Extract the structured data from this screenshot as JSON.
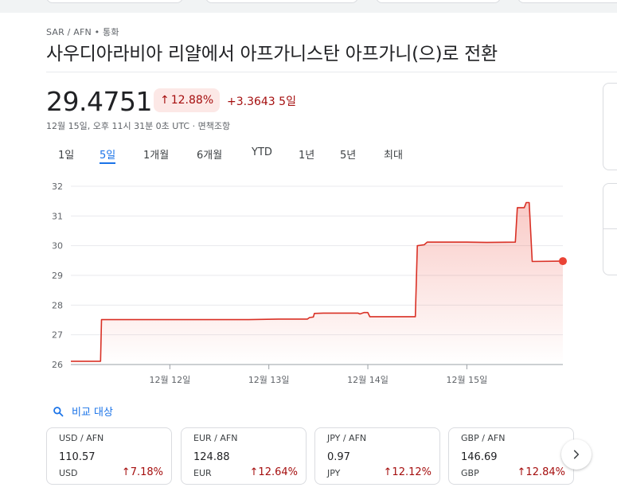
{
  "breadcrumb": "SAR / AFN • 통화",
  "title": "사우디아라비아 리얄에서 아프가니스탄 아프가니(으)로 전환",
  "price": {
    "value": "29.4751",
    "percent_change": "12.88%",
    "change": "+3.3643 5일",
    "meta": "12월 15일, 오후 11시 31분 0초 UTC · 면책조항"
  },
  "tabs": [
    "1일",
    "5일",
    "1개월",
    "6개월",
    "YTD",
    "1년",
    "5년",
    "최대"
  ],
  "active_tab": "5일",
  "compare_label": "비교 대상",
  "chart_data": {
    "type": "line",
    "y_ticks": [
      "32",
      "31",
      "30",
      "29",
      "28",
      "27",
      "26"
    ],
    "ylim": [
      26,
      32
    ],
    "x_ticks": [
      {
        "label": "12월 12일",
        "t": 1
      },
      {
        "label": "12월 13일",
        "t": 2
      },
      {
        "label": "12월 14일",
        "t": 3
      },
      {
        "label": "12월 15일",
        "t": 4
      }
    ],
    "xlim": [
      0.0,
      4.97
    ],
    "series": [
      {
        "points": [
          [
            0.0,
            26.11
          ],
          [
            0.3,
            26.11
          ],
          [
            0.31,
            27.51
          ],
          [
            1.8,
            27.51
          ],
          [
            2.1,
            27.53
          ],
          [
            2.39,
            27.53
          ],
          [
            2.41,
            27.58
          ],
          [
            2.45,
            27.6
          ],
          [
            2.46,
            27.72
          ],
          [
            2.55,
            27.73
          ],
          [
            2.9,
            27.73
          ],
          [
            2.92,
            27.7
          ],
          [
            2.96,
            27.75
          ],
          [
            3.0,
            27.75
          ],
          [
            3.02,
            27.61
          ],
          [
            3.48,
            27.61
          ],
          [
            3.5,
            30.0
          ],
          [
            3.57,
            30.03
          ],
          [
            3.6,
            30.12
          ],
          [
            4.0,
            30.12
          ],
          [
            4.2,
            30.11
          ],
          [
            4.49,
            30.12
          ],
          [
            4.51,
            31.28
          ],
          [
            4.58,
            31.28
          ],
          [
            4.6,
            31.45
          ],
          [
            4.63,
            31.45
          ],
          [
            4.66,
            29.47
          ],
          [
            4.97,
            29.48
          ]
        ]
      }
    ],
    "line_color": "#d93025",
    "grid": true
  },
  "cards": [
    {
      "pair": "USD / AFN",
      "value": "110.57",
      "code": "USD",
      "pct": "7.18%"
    },
    {
      "pair": "EUR / AFN",
      "value": "124.88",
      "code": "EUR",
      "pct": "12.64%"
    },
    {
      "pair": "JPY / AFN",
      "value": "0.97",
      "code": "JPY",
      "pct": "12.12%"
    },
    {
      "pair": "GBP / AFN",
      "value": "146.69",
      "code": "GBP",
      "pct": "12.84%"
    }
  ],
  "colors": {
    "accent": "#1a73e8",
    "negative_text": "#a50e0e",
    "badge_bg": "#fce8e6",
    "chart_line": "#d93025"
  },
  "icons": {
    "compare": "search-icon",
    "next": "chevron-right-icon",
    "up_arrow": "arrow-up-icon"
  }
}
